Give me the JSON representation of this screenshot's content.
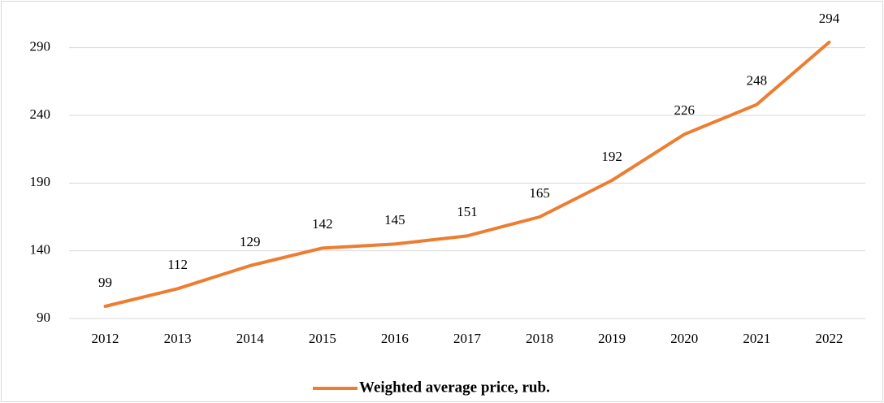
{
  "chart_data": {
    "type": "line",
    "categories": [
      "2012",
      "2013",
      "2014",
      "2015",
      "2016",
      "2017",
      "2018",
      "2019",
      "2020",
      "2021",
      "2022"
    ],
    "series": [
      {
        "name": "Weighted average price, rub.",
        "color": "#ed7d31",
        "values": [
          99,
          112,
          129,
          142,
          145,
          151,
          165,
          192,
          226,
          248,
          294
        ]
      }
    ],
    "ylim": [
      90,
      300
    ],
    "yticks": [
      90,
      140,
      190,
      240,
      290
    ],
    "grid": true,
    "legend": "bottom"
  }
}
